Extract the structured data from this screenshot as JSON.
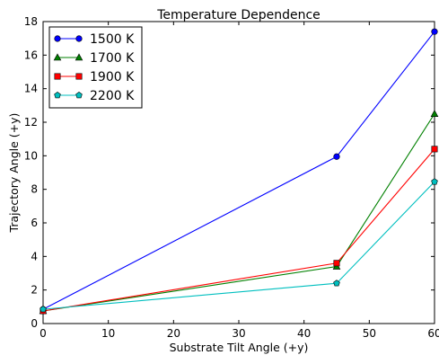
{
  "chart_data": {
    "type": "line",
    "title": "Temperature Dependence",
    "xlabel": "Substrate Tilt Angle (+y)",
    "ylabel": "Trajectory Angle (+y)",
    "xlim": [
      0,
      60
    ],
    "ylim": [
      0,
      18
    ],
    "xticks": [
      0,
      10,
      20,
      30,
      40,
      50,
      60
    ],
    "yticks": [
      0,
      2,
      4,
      6,
      8,
      10,
      12,
      14,
      16,
      18
    ],
    "grid": false,
    "legend_position": "top-left",
    "x": [
      0,
      45,
      60
    ],
    "series": [
      {
        "name": "1500 K",
        "values": [
          0.85,
          9.95,
          17.4
        ],
        "color": "#0000ff",
        "marker": "circle"
      },
      {
        "name": "1700 K",
        "values": [
          0.75,
          3.4,
          12.5
        ],
        "color": "#008000",
        "marker": "triangle"
      },
      {
        "name": "1900 K",
        "values": [
          0.75,
          3.6,
          10.4
        ],
        "color": "#ff0000",
        "marker": "square"
      },
      {
        "name": "2200 K",
        "values": [
          0.85,
          2.4,
          8.45
        ],
        "color": "#00bfbf",
        "marker": "pentagon"
      }
    ]
  }
}
